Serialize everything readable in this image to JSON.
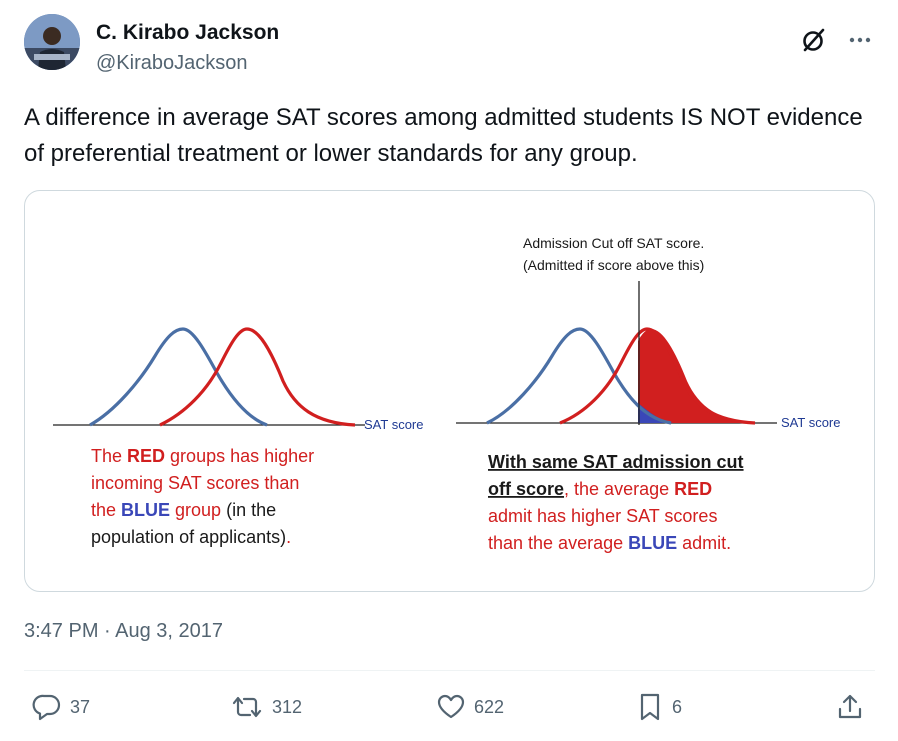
{
  "author": {
    "name": "C. Kirabo Jackson",
    "handle": "@KiraboJackson"
  },
  "tweet": {
    "text": "A difference in average SAT scores among admitted students IS NOT evidence of preferential treatment or lower standards for any group."
  },
  "figure": {
    "left_panel": {
      "axis_label": "SAT score",
      "caption_lines": [
        [
          {
            "t": "The ",
            "style": "red"
          },
          {
            "t": "RED",
            "style": "red-bold"
          },
          {
            "t": " groups has higher",
            "style": "red"
          }
        ],
        [
          {
            "t": "incoming SAT scores than",
            "style": "red"
          }
        ],
        [
          {
            "t": "the ",
            "style": "red"
          },
          {
            "t": "BLUE",
            "style": "blue-bold"
          },
          {
            "t": " group",
            "style": "red"
          },
          {
            "t": " (in the",
            "style": "dark"
          }
        ],
        [
          {
            "t": "population of applicants)",
            "style": "dark"
          },
          {
            "t": ".",
            "style": "red"
          }
        ]
      ]
    },
    "right_panel": {
      "cutoff_label_1": "Admission Cut off SAT score.",
      "cutoff_label_2": "(Admitted if score above this)",
      "axis_label": "SAT score",
      "caption_lines": [
        [
          {
            "t": "With same SAT admission cut",
            "style": "dark-bold-underline"
          }
        ],
        [
          {
            "t": "off score",
            "style": "dark-bold-underline"
          },
          {
            "t": ", the average ",
            "style": "red"
          },
          {
            "t": "RED",
            "style": "red-bold"
          }
        ],
        [
          {
            "t": "admit has higher SAT scores",
            "style": "red"
          }
        ],
        [
          {
            "t": "than the average ",
            "style": "red"
          },
          {
            "t": "BLUE",
            "style": "blue-bold"
          },
          {
            "t": " admit.",
            "style": "red"
          }
        ]
      ]
    },
    "colors": {
      "red": "#d11f1f",
      "blue": "#4a6fa5",
      "blue_text": "#3a47b8",
      "dark": "#1a1a1a"
    }
  },
  "timestamp": "3:47 PM · Aug 3, 2017",
  "actions": {
    "replies": "37",
    "reposts": "312",
    "likes": "622",
    "bookmarks": "6"
  }
}
